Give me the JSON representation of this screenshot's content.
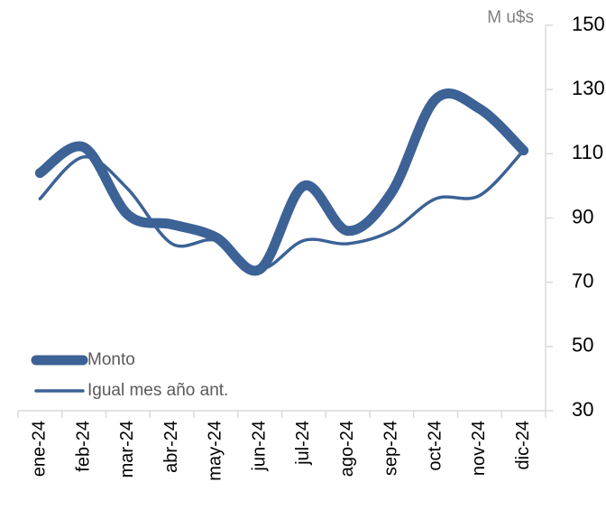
{
  "chart_data": {
    "type": "line",
    "axis_label": "M u$s",
    "categories": [
      "ene-24",
      "feb-24",
      "mar-24",
      "abr-24",
      "may-24",
      "jun-24",
      "jul-24",
      "ago-24",
      "sep-24",
      "oct-24",
      "nov-24",
      "dic-24"
    ],
    "series": [
      {
        "name": "Monto",
        "color": "#3c6296",
        "values": [
          104,
          112,
          91,
          88,
          84,
          74,
          100,
          86,
          98,
          127,
          124,
          111
        ]
      },
      {
        "name": "Igual mes año ant.",
        "color": "#3c6296",
        "values": [
          96,
          109,
          99,
          82,
          83,
          74,
          83,
          82,
          86,
          96,
          97,
          111
        ]
      }
    ],
    "ylim": [
      30,
      150
    ],
    "yticks": [
      30,
      50,
      70,
      90,
      110,
      130,
      150
    ],
    "y_axis_side": "right",
    "grid": false,
    "legend": "lower left"
  }
}
